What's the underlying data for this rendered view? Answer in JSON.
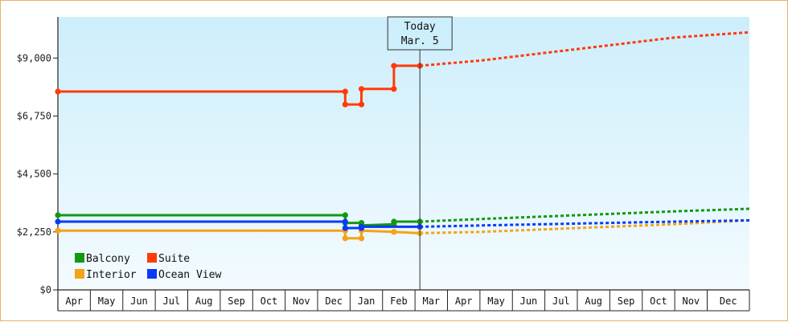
{
  "chart_data": {
    "type": "line",
    "title": "",
    "xlabel": "",
    "ylabel": "",
    "ylim": [
      0,
      10600
    ],
    "y_ticks": [
      "$0",
      "$2,250",
      "$4,500",
      "$6,750",
      "$9,000"
    ],
    "y_tick_values": [
      0,
      2250,
      4500,
      6750,
      9000
    ],
    "months": [
      "Apr",
      "May",
      "Jun",
      "Jul",
      "Aug",
      "Sep",
      "Oct",
      "Nov",
      "Dec",
      "Jan",
      "Feb",
      "Mar",
      "Apr",
      "May",
      "Jun",
      "Jul",
      "Aug",
      "Sep",
      "Oct",
      "Nov",
      "Dec"
    ],
    "x_range": [
      0,
      21.3
    ],
    "today": {
      "line1": "Today",
      "line2": "Mar. 5",
      "x": 11.15
    },
    "grid": false,
    "legend_position": "bottom-left",
    "series": [
      {
        "name": "Balcony",
        "color": "#129912",
        "history": [
          [
            0,
            2900
          ],
          [
            8.85,
            2900
          ],
          [
            8.85,
            2600
          ],
          [
            9.35,
            2600
          ],
          [
            9.35,
            2500
          ],
          [
            10.35,
            2550
          ],
          [
            10.35,
            2650
          ],
          [
            11.15,
            2650
          ]
        ],
        "forecast": [
          [
            11.15,
            2650
          ],
          [
            13,
            2750
          ],
          [
            15,
            2850
          ],
          [
            17,
            2950
          ],
          [
            19,
            3050
          ],
          [
            21.3,
            3150
          ]
        ]
      },
      {
        "name": "Suite",
        "color": "#ff3b0a",
        "history": [
          [
            0,
            7700
          ],
          [
            8.85,
            7700
          ],
          [
            8.85,
            7200
          ],
          [
            9.35,
            7200
          ],
          [
            9.35,
            7800
          ],
          [
            10.35,
            7800
          ],
          [
            10.35,
            8700
          ],
          [
            11.15,
            8700
          ]
        ],
        "forecast": [
          [
            11.15,
            8700
          ],
          [
            13,
            8900
          ],
          [
            15,
            9200
          ],
          [
            17,
            9500
          ],
          [
            19,
            9800
          ],
          [
            21.3,
            10000
          ]
        ]
      },
      {
        "name": "Interior",
        "color": "#f5a314",
        "history": [
          [
            0,
            2300
          ],
          [
            8.85,
            2300
          ],
          [
            8.85,
            2000
          ],
          [
            9.35,
            2000
          ],
          [
            9.35,
            2300
          ],
          [
            10.35,
            2250
          ],
          [
            11.15,
            2200
          ]
        ],
        "forecast": [
          [
            11.15,
            2200
          ],
          [
            13,
            2250
          ],
          [
            15,
            2350
          ],
          [
            17,
            2450
          ],
          [
            19,
            2550
          ],
          [
            21.3,
            2700
          ]
        ]
      },
      {
        "name": "Ocean View",
        "color": "#0a3af5",
        "history": [
          [
            0,
            2650
          ],
          [
            8.85,
            2650
          ],
          [
            8.85,
            2400
          ],
          [
            9.35,
            2400
          ],
          [
            9.35,
            2450
          ],
          [
            11.15,
            2450
          ]
        ],
        "forecast": [
          [
            11.15,
            2450
          ],
          [
            13,
            2500
          ],
          [
            15,
            2550
          ],
          [
            17,
            2600
          ],
          [
            19,
            2650
          ],
          [
            21.3,
            2700
          ]
        ]
      }
    ]
  }
}
